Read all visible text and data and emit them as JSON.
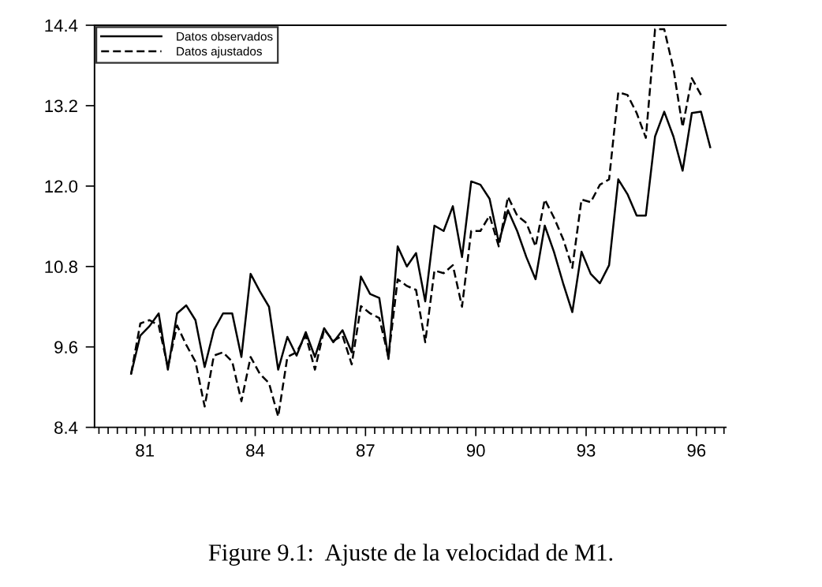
{
  "chart_data": {
    "type": "line",
    "xlim": [
      79.63,
      96.8
    ],
    "xticks": [
      81,
      84,
      87,
      90,
      93,
      96
    ],
    "ylim": [
      8.4,
      14.4
    ],
    "yticks": [
      8.4,
      9.6,
      10.8,
      {
        "value": 12,
        "label": "12.0"
      },
      13.2,
      14.4
    ],
    "x": [
      80.625,
      80.875,
      81.125,
      81.375,
      81.625,
      81.875,
      82.125,
      82.375,
      82.625,
      82.875,
      83.125,
      83.375,
      83.625,
      83.875,
      84.125,
      84.375,
      84.625,
      84.875,
      85.125,
      85.375,
      85.625,
      85.875,
      86.125,
      86.375,
      86.625,
      86.875,
      87.125,
      87.375,
      87.625,
      87.875,
      88.125,
      88.375,
      88.625,
      88.875,
      89.125,
      89.375,
      89.625,
      89.875,
      90.125,
      90.375,
      90.625,
      90.875,
      91.125,
      91.375,
      91.625,
      91.875,
      92.125,
      92.375,
      92.625,
      92.875,
      93.125,
      93.375,
      93.625,
      93.875,
      94.125,
      94.375,
      94.625,
      94.875,
      95.125,
      95.375,
      95.625,
      95.875,
      96.125,
      96.375
    ],
    "series": [
      {
        "name": "Datos observados",
        "color": "#000000",
        "line_style": "solid",
        "values": [
          9.2,
          9.77,
          9.91,
          10.1,
          9.26,
          10.1,
          10.22,
          10.0,
          9.3,
          9.85,
          10.1,
          10.1,
          9.45,
          10.69,
          10.43,
          10.2,
          9.26,
          9.75,
          9.47,
          9.82,
          9.45,
          9.88,
          9.67,
          9.85,
          9.52,
          10.65,
          10.39,
          10.33,
          9.42,
          11.1,
          10.8,
          11.0,
          10.28,
          11.41,
          11.33,
          11.7,
          10.94,
          12.07,
          12.02,
          11.81,
          11.16,
          11.64,
          11.33,
          10.94,
          10.61,
          11.41,
          11.02,
          10.55,
          10.12,
          11.02,
          10.69,
          10.55,
          10.82,
          12.1,
          11.88,
          11.56,
          11.56,
          12.74,
          13.11,
          12.74,
          12.23,
          13.09,
          13.11,
          12.58
        ]
      },
      {
        "name": "Datos ajustados",
        "color": "#000000",
        "line_style": "dashed",
        "values": [
          9.2,
          9.95,
          10.0,
          9.92,
          9.3,
          9.92,
          9.63,
          9.38,
          8.71,
          9.47,
          9.52,
          9.38,
          8.79,
          9.45,
          9.2,
          9.06,
          8.56,
          9.45,
          9.52,
          9.77,
          9.26,
          9.86,
          9.69,
          9.77,
          9.34,
          10.21,
          10.1,
          10.03,
          9.45,
          10.61,
          10.51,
          10.45,
          9.67,
          10.74,
          10.7,
          10.82,
          10.2,
          11.33,
          11.33,
          11.56,
          11.1,
          11.84,
          11.56,
          11.45,
          11.1,
          11.8,
          11.53,
          11.21,
          10.78,
          11.8,
          11.76,
          12.02,
          12.1,
          13.4,
          13.36,
          13.09,
          12.72,
          14.34,
          14.34,
          13.75,
          12.88,
          13.61,
          13.36,
          null
        ]
      }
    ],
    "legend": "top left",
    "grid": false,
    "marker": "none",
    "annotations": [
      "Figure 9.1:  Ajuste de la velocidad de M1."
    ]
  }
}
